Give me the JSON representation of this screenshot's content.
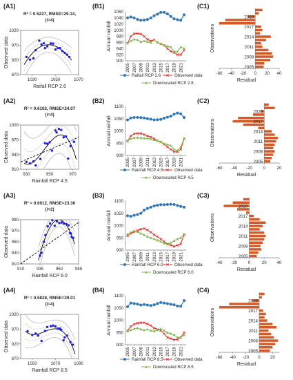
{
  "colors": {
    "blue": "#2e75b6",
    "red": "#e8231b",
    "green": "#82b74b",
    "orange": "#d35a26",
    "scatter": "#1f1fe0",
    "fit": "#000000",
    "band": "#b0b0b0",
    "axis": "#7f7f7f"
  },
  "chart_data": [
    {
      "id": "A1",
      "type": "scatter",
      "label": "(A1)",
      "stat": "R² = 0.5227, RMSE=29.14,",
      "stat2": "(i=4)",
      "xlabel": "Raifall RCP 2.6",
      "ylabel": "Observed data",
      "xticks": [
        "1030",
        "1050",
        "1070"
      ],
      "yticks": [
        "1020",
        "970",
        "920",
        "870"
      ],
      "xlim": [
        1020,
        1070
      ],
      "ylim": [
        870,
        1020
      ],
      "points": [
        [
          1025,
          930
        ],
        [
          1028,
          921
        ],
        [
          1031,
          925
        ],
        [
          1033,
          953
        ],
        [
          1036,
          985
        ],
        [
          1038,
          972
        ],
        [
          1040,
          976
        ],
        [
          1041,
          960
        ],
        [
          1043,
          966
        ],
        [
          1046,
          976
        ],
        [
          1048,
          975
        ],
        [
          1050,
          955
        ],
        [
          1052,
          960
        ],
        [
          1054,
          960
        ],
        [
          1056,
          950
        ],
        [
          1058,
          944
        ],
        [
          1060,
          938
        ],
        [
          1062,
          930
        ]
      ],
      "diagonal": false
    },
    {
      "id": "A2",
      "type": "scatter",
      "label": "(A2)",
      "stat": "R² = 0.6102, RMSE=24.07",
      "stat2": "(i=4)",
      "xlabel": "Rainfall RCP 4.5",
      "ylabel": "Observed data",
      "xticks": [
        "930",
        "950",
        "970"
      ],
      "yticks": [
        "1000",
        "970",
        "940",
        "910"
      ],
      "xlim": [
        925,
        975
      ],
      "ylim": [
        910,
        1000
      ],
      "points": [
        [
          930,
          925
        ],
        [
          933,
          922
        ],
        [
          936,
          926
        ],
        [
          938,
          918
        ],
        [
          942,
          931
        ],
        [
          946,
          963
        ],
        [
          948,
          962
        ],
        [
          950,
          965
        ],
        [
          952,
          948
        ],
        [
          955,
          989
        ],
        [
          956,
          985
        ],
        [
          958,
          992
        ],
        [
          960,
          990
        ],
        [
          962,
          975
        ],
        [
          964,
          977
        ],
        [
          966,
          932
        ],
        [
          968,
          957
        ],
        [
          971,
          966
        ]
      ],
      "diagonal": true
    },
    {
      "id": "A3",
      "type": "scatter",
      "label": "(A3)",
      "stat": "R² = 0.6912, RMSE=23.36",
      "stat2": "(i=2)",
      "xlabel": "Rainfall RCP 6.0",
      "ylabel": "Observed data",
      "xticks": [
        "910",
        "935",
        "960",
        "985"
      ],
      "yticks": [
        "990",
        "970",
        "950",
        "930",
        "910"
      ],
      "xlim": [
        910,
        985
      ],
      "ylim": [
        910,
        990
      ],
      "points": [
        [
          935,
          925
        ],
        [
          937,
          930
        ],
        [
          940,
          950
        ],
        [
          942,
          962
        ],
        [
          945,
          978
        ],
        [
          948,
          983
        ],
        [
          951,
          989
        ],
        [
          954,
          979
        ],
        [
          957,
          987
        ],
        [
          960,
          984
        ],
        [
          963,
          985
        ],
        [
          966,
          983
        ],
        [
          969,
          982
        ],
        [
          972,
          980
        ],
        [
          974,
          966
        ],
        [
          975,
          965
        ],
        [
          976,
          959
        ],
        [
          978,
          957
        ]
      ],
      "diagonal": true
    },
    {
      "id": "A4",
      "type": "scatter",
      "label": "(A4)",
      "stat": "R² = 0.5828, RMSE=29.01",
      "stat2": "(i=4)",
      "xlabel": "Rainfall RCP 8.5",
      "ylabel": "Observed data",
      "xticks": [
        "1050",
        "1070",
        "1090"
      ],
      "yticks": [
        "1020",
        "970",
        "920",
        "870"
      ],
      "xlim": [
        1040,
        1090
      ],
      "ylim": [
        870,
        1020
      ],
      "points": [
        [
          1046,
          963
        ],
        [
          1050,
          950
        ],
        [
          1053,
          955
        ],
        [
          1055,
          948
        ],
        [
          1058,
          930
        ],
        [
          1061,
          964
        ],
        [
          1063,
          977
        ],
        [
          1066,
          980
        ],
        [
          1068,
          982
        ],
        [
          1070,
          979
        ],
        [
          1072,
          972
        ],
        [
          1074,
          972
        ],
        [
          1075,
          967
        ],
        [
          1077,
          932
        ],
        [
          1078,
          942
        ],
        [
          1080,
          948
        ],
        [
          1083,
          926
        ],
        [
          1085,
          917
        ]
      ],
      "diagonal": false
    },
    {
      "id": "B1",
      "type": "line",
      "label": "(B1)",
      "ylabel": "Annual rainfall",
      "xticks": [
        "2005",
        "2007",
        "2009",
        "2011",
        "2013",
        "2015",
        "2017",
        "2019",
        "2021"
      ],
      "yticks": [
        "1060",
        "1040",
        "1020",
        "1000",
        "980",
        "960",
        "940",
        "920",
        "900"
      ],
      "ylim": [
        900,
        1060
      ],
      "x": [
        2005,
        2006,
        2007,
        2008,
        2009,
        2010,
        2011,
        2012,
        2013,
        2014,
        2015,
        2016,
        2017,
        2018,
        2019,
        2020,
        2021,
        2022
      ],
      "series": [
        {
          "name": "Raifall RCP 2.6",
          "style": "blue",
          "values": [
            1040,
            1043,
            1040,
            1035,
            1032,
            1033,
            1035,
            1040,
            1047,
            1052,
            1058,
            1058,
            1053,
            1045,
            1037,
            1034,
            1032,
            1050
          ]
        },
        {
          "name": "Observed data",
          "style": "red",
          "values": [
            957,
            980,
            988,
            989,
            987,
            980,
            970,
            965,
            968,
            960,
            955,
            950,
            940,
            931,
            927,
            920,
            920,
            935
          ]
        },
        {
          "name": "Downscaled RCP 2.6",
          "style": "green",
          "values": [
            957,
            965,
            970,
            968,
            962,
            965,
            962,
            960,
            968,
            960,
            955,
            950,
            948,
            945,
            930,
            930,
            945,
            940
          ]
        }
      ]
    },
    {
      "id": "B2",
      "type": "line",
      "label": "(B2)",
      "ylabel": "Annual rainfall",
      "xticks": [
        "2005",
        "2007",
        "2009",
        "2011",
        "2013",
        "2015",
        "2017",
        "2019",
        "2021"
      ],
      "yticks": [
        "1100",
        "1050",
        "1000",
        "950",
        "900"
      ],
      "ylim": [
        900,
        1100
      ],
      "x": [
        2005,
        2006,
        2007,
        2008,
        2009,
        2010,
        2011,
        2012,
        2013,
        2014,
        2015,
        2016,
        2017,
        2018,
        2019,
        2020,
        2021,
        2022
      ],
      "series": [
        {
          "name": "Rainfall RCP 4.5",
          "style": "blue",
          "values": [
            1045,
            1053,
            1055,
            1055,
            1054,
            1053,
            1050,
            1048,
            1045,
            1046,
            1047,
            1052,
            1056,
            1060,
            1068,
            1073,
            1070,
            1055
          ]
        },
        {
          "name": "Observed data",
          "style": "red",
          "values": [
            958,
            980,
            988,
            990,
            990,
            985,
            980,
            975,
            968,
            960,
            955,
            945,
            935,
            925,
            915,
            915,
            925,
            968
          ]
        },
        {
          "name": "Downscaled RCP 4.5",
          "style": "green",
          "values": [
            960,
            968,
            972,
            972,
            972,
            970,
            970,
            968,
            963,
            960,
            955,
            948,
            945,
            940,
            925,
            920,
            935,
            970
          ]
        }
      ]
    },
    {
      "id": "B3",
      "type": "line",
      "label": "(B3)",
      "ylabel": "Annual rainfall",
      "xticks": [
        "2005",
        "2007",
        "2009",
        "2011",
        "2013",
        "2015",
        "2017",
        "2019",
        "2021"
      ],
      "yticks": [
        "1100",
        "1050",
        "1000",
        "950",
        "900"
      ],
      "ylim": [
        900,
        1100
      ],
      "x": [
        2005,
        2006,
        2007,
        2008,
        2009,
        2010,
        2011,
        2012,
        2013,
        2014,
        2015,
        2016,
        2017,
        2018,
        2019,
        2020,
        2021,
        2022
      ],
      "series": [
        {
          "name": "Rainfall RCP 6.0",
          "style": "blue",
          "values": [
            1040,
            1038,
            1042,
            1045,
            1050,
            1063,
            1070,
            1075,
            1080,
            1083,
            1085,
            1085,
            1086,
            1087,
            1086,
            1082,
            1078,
            1075
          ]
        },
        {
          "name": "Observed data",
          "style": "red",
          "values": [
            958,
            968,
            975,
            980,
            985,
            988,
            982,
            973,
            962,
            955,
            945,
            935,
            925,
            920,
            915,
            920,
            925,
            963
          ]
        },
        {
          "name": "Downscaled RCP 6.0",
          "style": "green",
          "values": [
            965,
            972,
            978,
            975,
            968,
            962,
            955,
            950,
            945,
            940,
            935,
            928,
            924,
            930,
            938,
            945,
            950,
            965
          ]
        }
      ]
    },
    {
      "id": "B4",
      "type": "line",
      "label": "(B4)",
      "ylabel": "Annual rainfall",
      "xticks": [
        "2005",
        "2007",
        "2009",
        "2011",
        "2013",
        "2015",
        "2017",
        "2019",
        "2021"
      ],
      "yticks": [
        "1100",
        "1050",
        "1000",
        "950",
        "900"
      ],
      "ylim": [
        900,
        1100
      ],
      "x": [
        2005,
        2006,
        2007,
        2008,
        2009,
        2010,
        2011,
        2012,
        2013,
        2014,
        2015,
        2016,
        2017,
        2018,
        2019,
        2020,
        2021,
        2022
      ],
      "series": [
        {
          "name": "Rainfall RCP 8.5",
          "style": "blue",
          "values": [
            1055,
            1070,
            1068,
            1066,
            1062,
            1064,
            1062,
            1060,
            1063,
            1068,
            1072,
            1070,
            1068,
            1065,
            1063,
            1058,
            1057,
            1080
          ]
        },
        {
          "name": "Observed data",
          "style": "red",
          "values": [
            958,
            975,
            983,
            988,
            990,
            990,
            985,
            978,
            968,
            963,
            958,
            945,
            930,
            925,
            920,
            922,
            930,
            950
          ]
        },
        {
          "name": "Downscaled RCP 8.5",
          "style": "green",
          "values": [
            955,
            960,
            965,
            968,
            963,
            960,
            963,
            958,
            955,
            960,
            965,
            958,
            950,
            945,
            940,
            930,
            930,
            940
          ]
        }
      ]
    },
    {
      "id": "C1",
      "type": "bar",
      "label": "(C1)",
      "ylabel": "Observations",
      "xlabel": "Residual",
      "ytick_labels": [
        "2005",
        "2008",
        "2011",
        "2014",
        "2017",
        "2020"
      ],
      "xticks": [
        "-60",
        "-40",
        "-20",
        "0",
        "20",
        "40"
      ],
      "xlim": [
        -60,
        40
      ],
      "years": [
        2005,
        2006,
        2007,
        2008,
        2009,
        2010,
        2011,
        2012,
        2013,
        2014,
        2015,
        2016,
        2017,
        2018,
        2019,
        2020,
        2021,
        2022
      ],
      "values": [
        14,
        15,
        25,
        30,
        28,
        22,
        12,
        10,
        18,
        26,
        8,
        12,
        10,
        -60,
        -50,
        -12,
        6,
        12
      ]
    },
    {
      "id": "C2",
      "type": "bar",
      "label": "(C2)",
      "ylabel": "Observations",
      "xlabel": "Residual",
      "ytick_labels": [
        "2005",
        "2008",
        "2011",
        "2014",
        "2017",
        "2020"
      ],
      "xticks": [
        "-60",
        "-40",
        "-20",
        "0",
        "20"
      ],
      "xlim": [
        -60,
        20
      ],
      "years": [
        2005,
        2006,
        2007,
        2008,
        2009,
        2010,
        2011,
        2012,
        2013,
        2014,
        2015,
        2016,
        2017,
        2018,
        2019,
        2020,
        2021,
        2022
      ],
      "values": [
        8,
        10,
        12,
        14,
        12,
        14,
        16,
        18,
        14,
        10,
        -8,
        -28,
        -42,
        -35,
        -15,
        -5,
        14,
        6
      ]
    },
    {
      "id": "C3",
      "type": "bar",
      "label": "(C3)",
      "ylabel": "Observations",
      "xlabel": "Residual",
      "ytick_labels": [
        "2005",
        "2008",
        "2011",
        "2014",
        "2017",
        "2020"
      ],
      "xticks": [
        "-40",
        "-20",
        "0",
        "20",
        "40"
      ],
      "xlim": [
        -40,
        40
      ],
      "years": [
        2005,
        2006,
        2007,
        2008,
        2009,
        2010,
        2011,
        2012,
        2013,
        2014,
        2015,
        2016,
        2017,
        2018,
        2019,
        2020,
        2021,
        2022
      ],
      "values": [
        10,
        12,
        16,
        15,
        18,
        20,
        22,
        20,
        14,
        18,
        22,
        14,
        6,
        -4,
        -16,
        -34,
        -22,
        -8
      ]
    },
    {
      "id": "C4",
      "type": "bar",
      "label": "(C4)",
      "ylabel": "Observations",
      "xlabel": "Residual",
      "ytick_labels": [
        "2005",
        "2008",
        "2011",
        "2014",
        "2017",
        "2020"
      ],
      "xticks": [
        "-60",
        "-40",
        "-20",
        "0",
        "20"
      ],
      "xlim": [
        -60,
        30
      ],
      "years": [
        2005,
        2006,
        2007,
        2008,
        2009,
        2010,
        2011,
        2012,
        2013,
        2014,
        2015,
        2016,
        2017,
        2018,
        2019,
        2020,
        2021,
        2022
      ],
      "values": [
        16,
        20,
        24,
        28,
        22,
        18,
        14,
        26,
        20,
        12,
        8,
        10,
        6,
        -60,
        -45,
        -10,
        4,
        8
      ]
    }
  ]
}
